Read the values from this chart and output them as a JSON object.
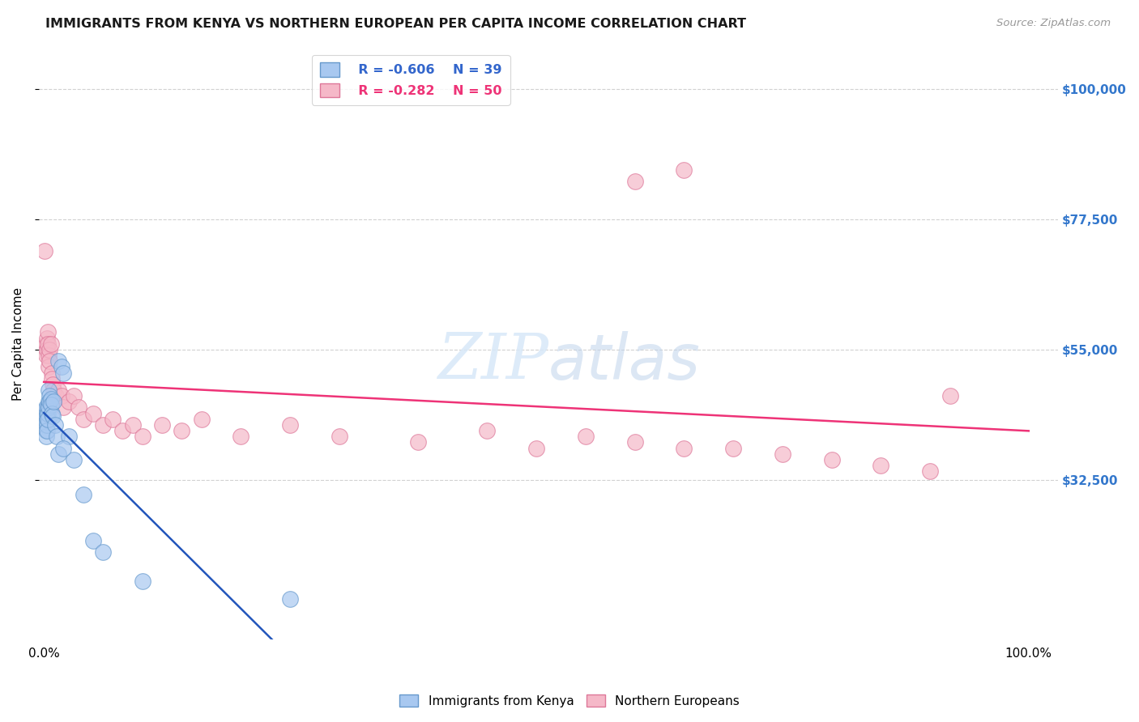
{
  "title": "IMMIGRANTS FROM KENYA VS NORTHERN EUROPEAN PER CAPITA INCOME CORRELATION CHART",
  "source": "Source: ZipAtlas.com",
  "ylabel": "Per Capita Income",
  "background_color": "#ffffff",
  "grid_color": "#cccccc",
  "kenya_color": "#a8c8f0",
  "kenya_edge": "#6699cc",
  "northern_color": "#f5b8c8",
  "northern_edge": "#dd7799",
  "kenya_line_color": "#2255bb",
  "northern_line_color": "#ee3377",
  "kenya_R": -0.606,
  "kenya_N": 39,
  "northern_R": -0.282,
  "northern_N": 50,
  "ytick_values": [
    32500,
    55000,
    77500,
    100000
  ],
  "ytick_labels": [
    "$32,500",
    "$55,000",
    "$77,500",
    "$100,000"
  ],
  "kenya_x": [
    0.001,
    0.001,
    0.001,
    0.002,
    0.002,
    0.002,
    0.002,
    0.002,
    0.003,
    0.003,
    0.003,
    0.003,
    0.004,
    0.004,
    0.004,
    0.005,
    0.005,
    0.005,
    0.006,
    0.006,
    0.007,
    0.007,
    0.008,
    0.009,
    0.01,
    0.011,
    0.013,
    0.015,
    0.018,
    0.02,
    0.025,
    0.03,
    0.04,
    0.05,
    0.06,
    0.015,
    0.02,
    0.25,
    0.1
  ],
  "kenya_y": [
    43000,
    44500,
    42000,
    45000,
    43500,
    42500,
    41000,
    40000,
    44000,
    43000,
    42000,
    41000,
    45000,
    44000,
    43000,
    48000,
    46000,
    45000,
    47000,
    46000,
    46500,
    45500,
    44000,
    43500,
    46000,
    42000,
    40000,
    53000,
    52000,
    51000,
    40000,
    36000,
    30000,
    22000,
    20000,
    37000,
    38000,
    12000,
    15000
  ],
  "northern_x": [
    0.001,
    0.002,
    0.002,
    0.003,
    0.003,
    0.004,
    0.004,
    0.005,
    0.005,
    0.006,
    0.006,
    0.007,
    0.008,
    0.008,
    0.009,
    0.01,
    0.012,
    0.015,
    0.018,
    0.02,
    0.025,
    0.03,
    0.035,
    0.04,
    0.05,
    0.06,
    0.07,
    0.08,
    0.09,
    0.1,
    0.12,
    0.14,
    0.16,
    0.2,
    0.25,
    0.3,
    0.38,
    0.45,
    0.5,
    0.55,
    0.6,
    0.65,
    0.7,
    0.75,
    0.8,
    0.85,
    0.9,
    0.92,
    0.6,
    0.65
  ],
  "northern_y": [
    72000,
    56000,
    54000,
    57000,
    55000,
    58000,
    56000,
    54000,
    52000,
    55000,
    53000,
    56000,
    51000,
    50000,
    49000,
    48000,
    47000,
    48000,
    47000,
    45000,
    46000,
    47000,
    45000,
    43000,
    44000,
    42000,
    43000,
    41000,
    42000,
    40000,
    42000,
    41000,
    43000,
    40000,
    42000,
    40000,
    39000,
    41000,
    38000,
    40000,
    39000,
    38000,
    38000,
    37000,
    36000,
    35000,
    34000,
    47000,
    84000,
    86000
  ]
}
